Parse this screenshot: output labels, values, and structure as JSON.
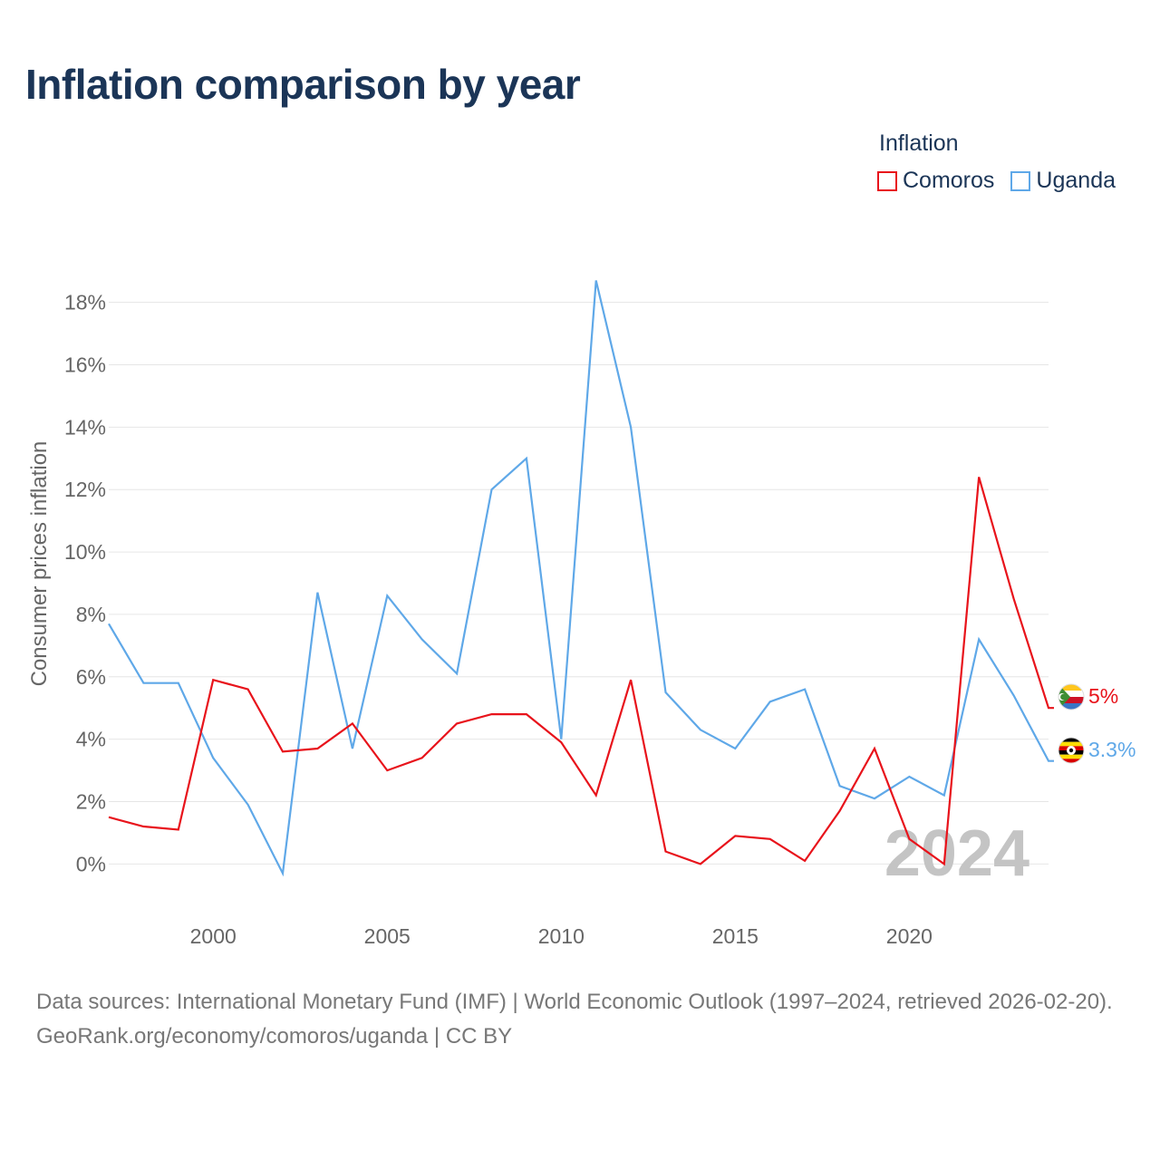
{
  "title": "Inflation comparison by year",
  "legend": {
    "title": "Inflation",
    "items": [
      {
        "label": "Comoros",
        "color": "#e8131b"
      },
      {
        "label": "Uganda",
        "color": "#5fa8e8"
      }
    ]
  },
  "chart_data": {
    "type": "line",
    "title": "Inflation comparison by year",
    "xlabel": "",
    "ylabel": "Consumer prices inflation",
    "x": [
      1997,
      1998,
      1999,
      2000,
      2001,
      2002,
      2003,
      2004,
      2005,
      2006,
      2007,
      2008,
      2009,
      2010,
      2011,
      2012,
      2013,
      2014,
      2015,
      2016,
      2017,
      2018,
      2019,
      2020,
      2021,
      2022,
      2023,
      2024
    ],
    "xticks": [
      2000,
      2005,
      2010,
      2015,
      2020
    ],
    "xlim": [
      1997,
      2024
    ],
    "ylim": [
      -1.5,
      19.5
    ],
    "yticks": [
      0,
      2,
      4,
      6,
      8,
      10,
      12,
      14,
      16,
      18
    ],
    "ytick_labels": [
      "0%",
      "2%",
      "4%",
      "6%",
      "8%",
      "10%",
      "12%",
      "14%",
      "16%",
      "18%"
    ],
    "grid": true,
    "series": [
      {
        "name": "Comoros",
        "color": "#e8131b",
        "values": [
          1.5,
          1.2,
          1.1,
          5.9,
          5.6,
          3.6,
          3.7,
          4.5,
          3.0,
          3.4,
          4.5,
          4.8,
          4.8,
          3.9,
          2.2,
          5.9,
          0.4,
          0.0,
          0.9,
          0.8,
          0.1,
          1.7,
          3.7,
          0.8,
          0.0,
          12.4,
          8.5,
          5.0
        ],
        "end_label": "5%"
      },
      {
        "name": "Uganda",
        "color": "#5fa8e8",
        "values": [
          7.7,
          5.8,
          5.8,
          3.4,
          1.9,
          -0.3,
          8.7,
          3.7,
          8.6,
          7.2,
          6.1,
          12.0,
          13.0,
          4.0,
          18.7,
          14.0,
          5.5,
          4.3,
          3.7,
          5.2,
          5.6,
          2.5,
          2.1,
          2.8,
          2.2,
          7.2,
          5.4,
          3.3
        ],
        "end_label": "3.3%"
      }
    ],
    "annotation": "2024"
  },
  "footer": {
    "sources": "Data sources: International Monetary Fund (IMF) | World Economic Outlook (1997–2024, retrieved 2026-02-20).",
    "credit": "GeoRank.org/economy/comoros/uganda | CC BY"
  }
}
